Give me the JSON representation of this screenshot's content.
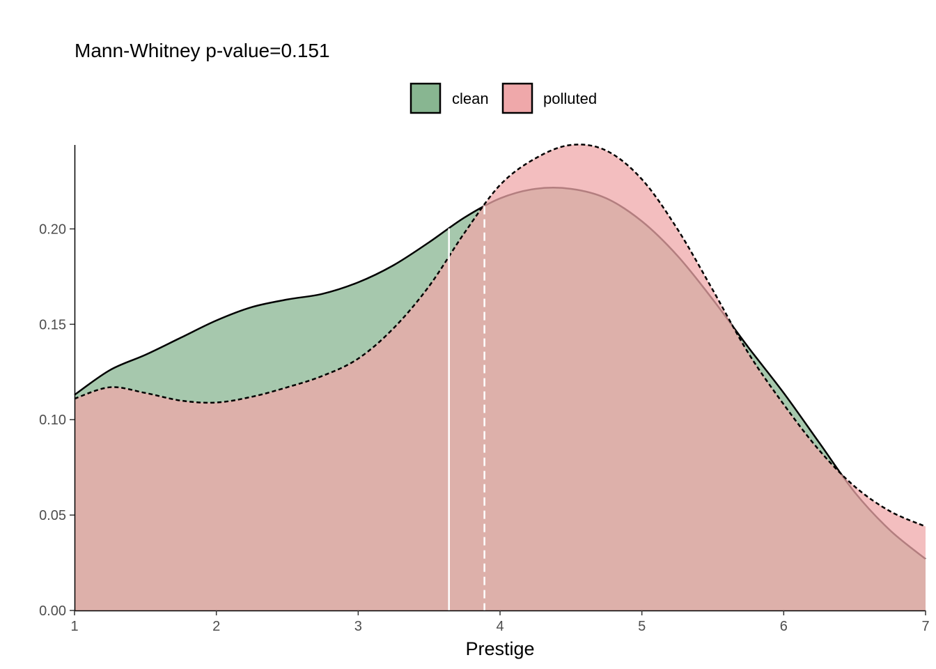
{
  "chart_data": {
    "type": "area",
    "title": "Mann-Whitney p-value=0.151",
    "xlabel": "Prestige",
    "ylabel": "",
    "xlim": [
      1,
      7
    ],
    "ylim": [
      0,
      0.244
    ],
    "x_ticks": [
      1,
      2,
      3,
      4,
      5,
      6,
      7
    ],
    "x_tick_labels": [
      "1",
      "2",
      "3",
      "4",
      "5",
      "6",
      "7"
    ],
    "y_ticks": [
      0,
      0.05,
      0.1,
      0.15,
      0.2
    ],
    "y_tick_labels": [
      "0.00",
      "0.05",
      "0.10",
      "0.15",
      "0.20"
    ],
    "grid": false,
    "legend_position": "top-center",
    "x": [
      1.0,
      1.25,
      1.5,
      1.75,
      2.0,
      2.25,
      2.5,
      2.75,
      3.0,
      3.25,
      3.5,
      3.75,
      4.0,
      4.25,
      4.5,
      4.75,
      5.0,
      5.25,
      5.5,
      5.75,
      6.0,
      6.25,
      6.5,
      6.75,
      7.0
    ],
    "series": [
      {
        "name": "clean",
        "fill": "#88b691",
        "line_color": "#000000",
        "dashed": false,
        "values": [
          0.113,
          0.126,
          0.134,
          0.143,
          0.152,
          0.159,
          0.163,
          0.166,
          0.172,
          0.181,
          0.193,
          0.206,
          0.216,
          0.221,
          0.221,
          0.216,
          0.204,
          0.186,
          0.163,
          0.138,
          0.114,
          0.088,
          0.062,
          0.042,
          0.027
        ],
        "mean_line": 3.64
      },
      {
        "name": "polluted",
        "fill": "#efa8aa",
        "line_color": "#000000",
        "dashed": true,
        "values": [
          0.111,
          0.117,
          0.114,
          0.11,
          0.109,
          0.112,
          0.117,
          0.123,
          0.132,
          0.148,
          0.17,
          0.198,
          0.223,
          0.237,
          0.244,
          0.241,
          0.226,
          0.2,
          0.168,
          0.135,
          0.108,
          0.084,
          0.065,
          0.052,
          0.044
        ],
        "mean_line": 3.89
      }
    ]
  }
}
